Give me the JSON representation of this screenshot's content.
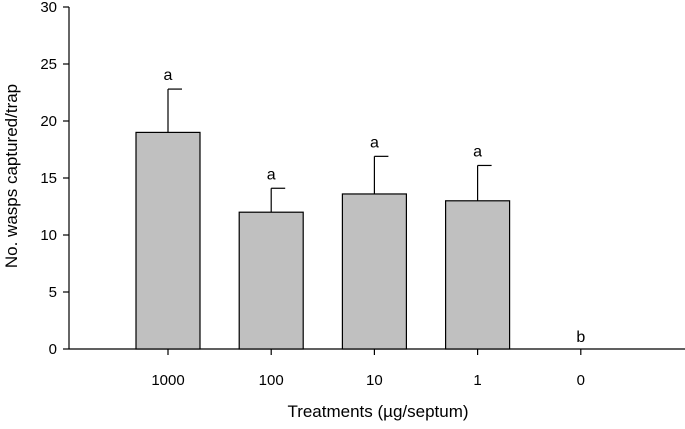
{
  "chart_data": {
    "type": "bar",
    "title": "",
    "xlabel": "Treatments (µg/septum)",
    "ylabel": "No. wasps captured/trap",
    "ylim": [
      0,
      30
    ],
    "yticks": [
      0,
      5,
      10,
      15,
      20,
      25,
      30
    ],
    "categories": [
      "1000",
      "100",
      "10",
      "1",
      "0"
    ],
    "values": [
      19.0,
      12.0,
      13.6,
      13.0,
      0
    ],
    "error": [
      3.8,
      2.1,
      3.3,
      3.1,
      0
    ],
    "significance": [
      "a",
      "a",
      "a",
      "a",
      "b"
    ],
    "bar_color": "#c0c0c0",
    "grid": false
  }
}
